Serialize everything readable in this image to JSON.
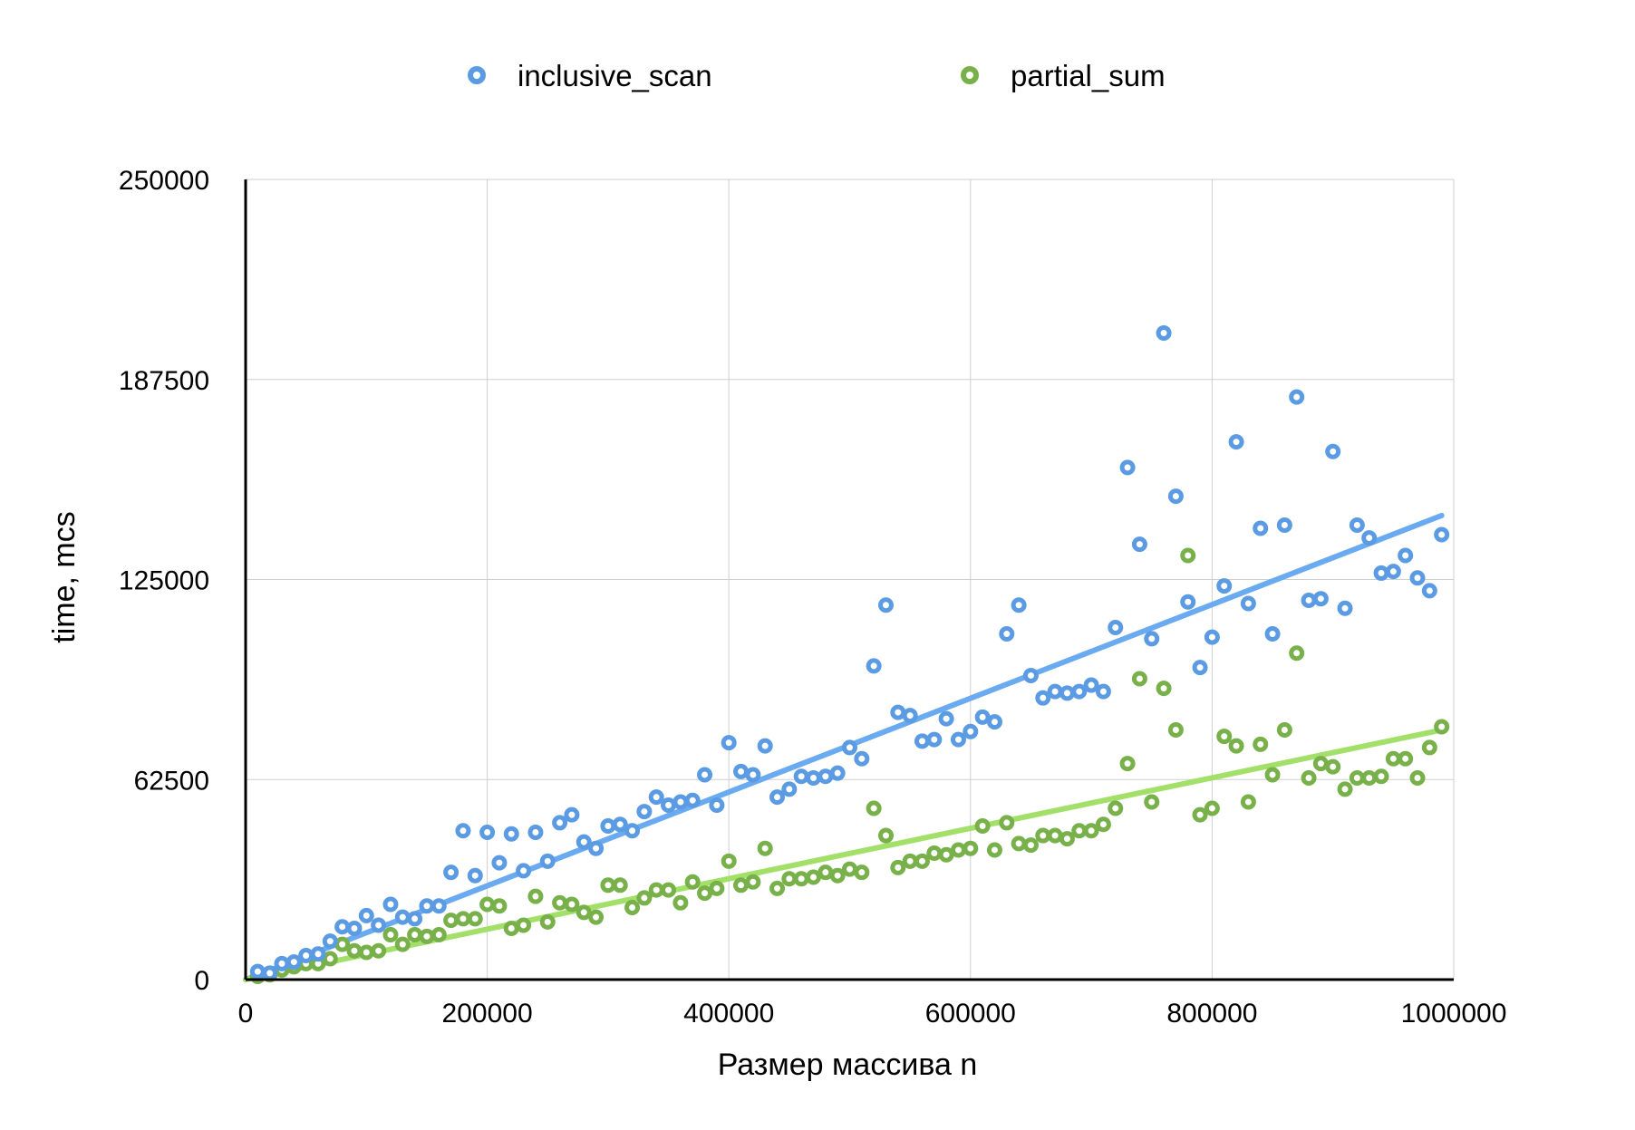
{
  "chart_data": {
    "type": "scatter",
    "xlabel": "Размер массива n",
    "ylabel": "time, mcs",
    "xlim": [
      0,
      1000000
    ],
    "ylim": [
      0,
      250000
    ],
    "xticks": [
      "0",
      "200000",
      "400000",
      "600000",
      "800000",
      "1000000"
    ],
    "yticks": [
      "0",
      "62500",
      "125000",
      "187500",
      "250000"
    ],
    "xtick_values": [
      0,
      200000,
      400000,
      600000,
      800000,
      1000000
    ],
    "ytick_values": [
      0,
      62500,
      125000,
      187500,
      250000
    ],
    "grid": true,
    "legend_position": "top",
    "series": [
      {
        "name": "inclusive_scan",
        "color": "#5b9be3",
        "trendline_color": "#6aaaf0",
        "trendline": {
          "x": [
            0,
            990000
          ],
          "y": [
            0,
            145000
          ]
        },
        "x": [
          10000,
          20000,
          30000,
          40000,
          50000,
          60000,
          70000,
          80000,
          90000,
          100000,
          110000,
          120000,
          130000,
          140000,
          150000,
          160000,
          170000,
          180000,
          190000,
          200000,
          210000,
          220000,
          230000,
          240000,
          250000,
          260000,
          270000,
          280000,
          290000,
          300000,
          310000,
          320000,
          330000,
          340000,
          350000,
          360000,
          370000,
          380000,
          390000,
          400000,
          410000,
          420000,
          430000,
          440000,
          450000,
          460000,
          470000,
          480000,
          490000,
          500000,
          510000,
          520000,
          530000,
          540000,
          550000,
          560000,
          570000,
          580000,
          590000,
          600000,
          610000,
          620000,
          630000,
          640000,
          650000,
          660000,
          670000,
          680000,
          690000,
          700000,
          710000,
          720000,
          730000,
          740000,
          750000,
          760000,
          770000,
          780000,
          790000,
          800000,
          810000,
          820000,
          830000,
          840000,
          850000,
          860000,
          870000,
          880000,
          890000,
          900000,
          910000,
          920000,
          930000,
          940000,
          950000,
          960000,
          970000,
          980000,
          990000
        ],
        "y": [
          2500,
          2000,
          5000,
          5500,
          7500,
          8000,
          12000,
          16500,
          16000,
          20000,
          17000,
          23500,
          19500,
          19000,
          23000,
          23000,
          33500,
          46500,
          32500,
          46000,
          36500,
          45500,
          34000,
          46000,
          37000,
          49000,
          51500,
          43000,
          41000,
          48000,
          48500,
          46500,
          52500,
          57000,
          54500,
          55500,
          56000,
          64000,
          54500,
          74000,
          65000,
          64000,
          73000,
          57000,
          59500,
          63500,
          63000,
          63500,
          64500,
          72500,
          69000,
          98000,
          117000,
          83500,
          82500,
          74500,
          75000,
          81500,
          75000,
          77500,
          82000,
          80500,
          108000,
          117000,
          95000,
          88000,
          90000,
          89500,
          90000,
          92000,
          90000,
          110000,
          160000,
          136000,
          106500,
          202000,
          151000,
          118000,
          97500,
          107000,
          123000,
          168000,
          117500,
          141000,
          108000,
          142000,
          182000,
          118500,
          119000,
          165000,
          116000,
          142000,
          138000,
          127000,
          127500,
          132500,
          125500,
          121500,
          139000
        ]
      },
      {
        "name": "partial_sum",
        "color": "#78b04a",
        "trendline_color": "#a3e06a",
        "trendline": {
          "x": [
            0,
            990000
          ],
          "y": [
            0,
            78000
          ]
        },
        "x": [
          10000,
          20000,
          30000,
          40000,
          50000,
          60000,
          70000,
          80000,
          90000,
          100000,
          110000,
          120000,
          130000,
          140000,
          150000,
          160000,
          170000,
          180000,
          190000,
          200000,
          210000,
          220000,
          230000,
          240000,
          250000,
          260000,
          270000,
          280000,
          290000,
          300000,
          310000,
          320000,
          330000,
          340000,
          350000,
          360000,
          370000,
          380000,
          390000,
          400000,
          410000,
          420000,
          430000,
          440000,
          450000,
          460000,
          470000,
          480000,
          490000,
          500000,
          510000,
          520000,
          530000,
          540000,
          550000,
          560000,
          570000,
          580000,
          590000,
          600000,
          610000,
          620000,
          630000,
          640000,
          650000,
          660000,
          670000,
          680000,
          690000,
          700000,
          710000,
          720000,
          730000,
          740000,
          750000,
          760000,
          770000,
          780000,
          790000,
          800000,
          810000,
          820000,
          830000,
          840000,
          850000,
          860000,
          870000,
          880000,
          890000,
          900000,
          910000,
          920000,
          930000,
          940000,
          950000,
          960000,
          970000,
          980000,
          990000
        ],
        "y": [
          1000,
          1500,
          3000,
          4000,
          5000,
          5000,
          6500,
          11000,
          9000,
          8500,
          9000,
          14000,
          11000,
          14000,
          13500,
          14000,
          18500,
          19000,
          19000,
          23500,
          23000,
          16000,
          17000,
          26000,
          18000,
          24000,
          23500,
          21000,
          19500,
          29500,
          29500,
          22500,
          25500,
          28000,
          28000,
          24000,
          30500,
          27000,
          28500,
          37000,
          29500,
          30500,
          41000,
          28500,
          31500,
          31500,
          32000,
          33500,
          32500,
          34500,
          33500,
          53500,
          45000,
          35000,
          37000,
          37000,
          39500,
          39000,
          40500,
          41000,
          48000,
          40500,
          49000,
          42500,
          42000,
          45000,
          45000,
          44000,
          46500,
          46500,
          48500,
          53500,
          67500,
          94000,
          55500,
          91000,
          78000,
          132500,
          51500,
          53500,
          76000,
          73000,
          55500,
          73500,
          64000,
          78000,
          102000,
          63000,
          67500,
          66500,
          59500,
          63000,
          63000,
          63500,
          69000,
          69000,
          63000,
          72500,
          79000
        ]
      }
    ]
  }
}
